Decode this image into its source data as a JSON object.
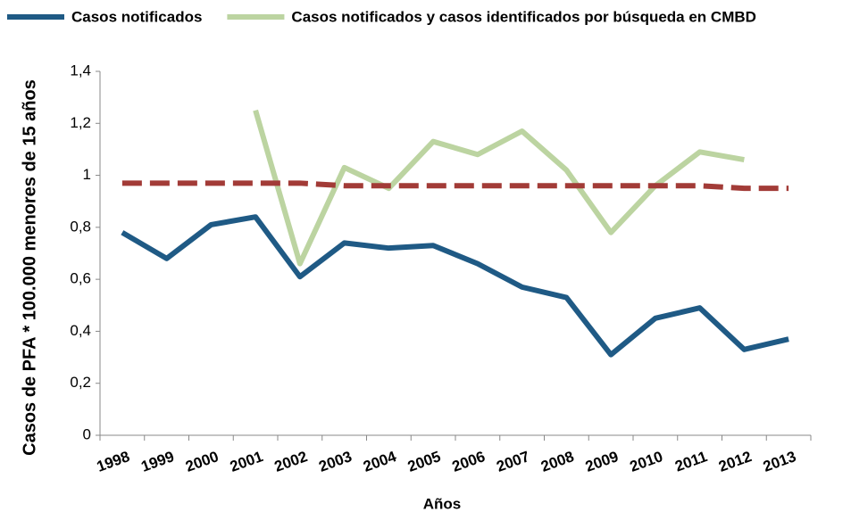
{
  "chart_data": {
    "type": "line",
    "x_label": "Años",
    "y_label": "Casos de PFA * 100.000 menores de 15 años",
    "categories": [
      "1998",
      "1999",
      "2000",
      "2001",
      "2002",
      "2003",
      "2004",
      "2005",
      "2006",
      "2007",
      "2008",
      "2009",
      "2010",
      "2011",
      "2012",
      "2013"
    ],
    "series": [
      {
        "name": "Casos notificados",
        "color": "#1f5a85",
        "values": [
          0.78,
          0.68,
          0.81,
          0.84,
          0.61,
          0.74,
          0.72,
          0.73,
          0.66,
          0.57,
          0.53,
          0.31,
          0.45,
          0.49,
          0.33,
          0.37
        ]
      },
      {
        "name": "Casos notificados y casos identificados por búsqueda en CMBD",
        "color": "#bcd4a1",
        "values": [
          null,
          null,
          null,
          1.25,
          0.66,
          1.03,
          0.95,
          1.13,
          1.08,
          1.17,
          1.02,
          0.78,
          0.96,
          1.09,
          1.06,
          null
        ]
      },
      {
        "color": "#a23b37",
        "dashed": true,
        "values": [
          0.97,
          0.97,
          0.97,
          0.97,
          0.97,
          0.96,
          0.96,
          0.96,
          0.96,
          0.96,
          0.96,
          0.96,
          0.96,
          0.96,
          0.95,
          0.95
        ]
      }
    ],
    "ylim": [
      0,
      1.4
    ],
    "yticks": [
      0,
      {
        "value": 0.2,
        "label": "0,2"
      },
      {
        "value": 0.4,
        "label": "0,4"
      },
      {
        "value": 0.6,
        "label": "0,6"
      },
      {
        "value": 0.8,
        "label": "0,8"
      },
      1,
      {
        "value": 1.2,
        "label": "1,2"
      },
      {
        "value": 1.4,
        "label": "1,4"
      }
    ],
    "legend": "top"
  }
}
